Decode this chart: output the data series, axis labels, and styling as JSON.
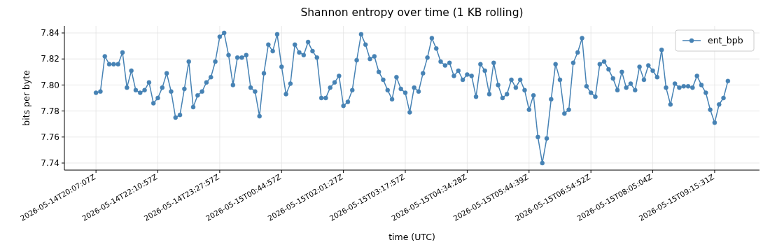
{
  "chart_data": {
    "type": "line",
    "title": "Shannon entropy over time (1 KB rolling)",
    "xlabel": "time (UTC)",
    "ylabel": "bits per byte",
    "categories": [
      "2026-05-14T20:07:07Z",
      null,
      null,
      null,
      null,
      null,
      null,
      null,
      null,
      null,
      null,
      null,
      null,
      null,
      "2026-05-14T22:10:57Z",
      null,
      null,
      null,
      null,
      null,
      null,
      null,
      null,
      null,
      null,
      null,
      null,
      null,
      "2026-05-14T23:27:57Z",
      null,
      null,
      null,
      null,
      null,
      null,
      null,
      null,
      null,
      null,
      null,
      null,
      null,
      "2026-05-15T00:44:57Z",
      null,
      null,
      null,
      null,
      null,
      null,
      null,
      null,
      null,
      null,
      null,
      null,
      null,
      "2026-05-15T02:01:27Z",
      null,
      null,
      null,
      null,
      null,
      null,
      null,
      null,
      null,
      null,
      null,
      null,
      null,
      "2026-05-15T03:17:57Z",
      null,
      null,
      null,
      null,
      null,
      null,
      null,
      null,
      null,
      null,
      null,
      null,
      null,
      "2026-05-15T04:34:28Z",
      null,
      null,
      null,
      null,
      null,
      null,
      null,
      null,
      null,
      null,
      null,
      null,
      null,
      "2026-05-15T05:44:39Z",
      null,
      null,
      null,
      null,
      null,
      null,
      null,
      null,
      null,
      null,
      null,
      null,
      null,
      "2026-05-15T06:54:52Z",
      null,
      null,
      null,
      null,
      null,
      null,
      null,
      null,
      null,
      null,
      null,
      null,
      null,
      "2026-05-15T08:05:04Z",
      null,
      null,
      null,
      null,
      null,
      null,
      null,
      null,
      null,
      null,
      null,
      null,
      null,
      "2026-05-15T09:15:31Z",
      null,
      null,
      null
    ],
    "series": [
      {
        "name": "ent_bpb",
        "color": "#4682b4",
        "values": [
          7.794,
          7.795,
          7.822,
          7.816,
          7.816,
          7.816,
          7.825,
          7.798,
          7.811,
          7.796,
          7.794,
          7.796,
          7.802,
          7.786,
          7.79,
          7.798,
          7.809,
          7.795,
          7.775,
          7.777,
          7.797,
          7.818,
          7.783,
          7.792,
          7.795,
          7.802,
          7.806,
          7.818,
          7.837,
          7.84,
          7.823,
          7.8,
          7.821,
          7.821,
          7.823,
          7.798,
          7.795,
          7.776,
          7.809,
          7.831,
          7.826,
          7.839,
          7.814,
          7.793,
          7.801,
          7.831,
          7.825,
          7.823,
          7.833,
          7.826,
          7.821,
          7.79,
          7.79,
          7.798,
          7.802,
          7.807,
          7.784,
          7.787,
          7.796,
          7.819,
          7.839,
          7.831,
          7.82,
          7.822,
          7.81,
          7.804,
          7.796,
          7.789,
          7.806,
          7.797,
          7.794,
          7.779,
          7.798,
          7.795,
          7.809,
          7.821,
          7.836,
          7.828,
          7.818,
          7.815,
          7.817,
          7.807,
          7.811,
          7.804,
          7.808,
          7.807,
          7.791,
          7.816,
          7.811,
          7.793,
          7.817,
          7.8,
          7.79,
          7.793,
          7.804,
          7.798,
          7.804,
          7.796,
          7.781,
          7.792,
          7.76,
          7.74,
          7.759,
          7.789,
          7.816,
          7.804,
          7.778,
          7.781,
          7.817,
          7.825,
          7.836,
          7.799,
          7.794,
          7.791,
          7.816,
          7.818,
          7.812,
          7.805,
          7.796,
          7.81,
          7.798,
          7.801,
          7.796,
          7.814,
          7.804,
          7.815,
          7.811,
          7.806,
          7.827,
          7.798,
          7.785,
          7.801,
          7.798,
          7.799,
          7.799,
          7.798,
          7.807,
          7.8,
          7.794,
          7.781,
          7.771,
          7.785,
          7.79,
          7.803
        ]
      }
    ],
    "ylim": [
      7.7346,
      7.8454
    ],
    "yticks": [
      7.74,
      7.76,
      7.78,
      {
        "value": 7.8,
        "label": "7.80"
      },
      7.82,
      7.84
    ],
    "grid": true,
    "legend": "top right",
    "marker": "circle",
    "line_style": "solid"
  }
}
